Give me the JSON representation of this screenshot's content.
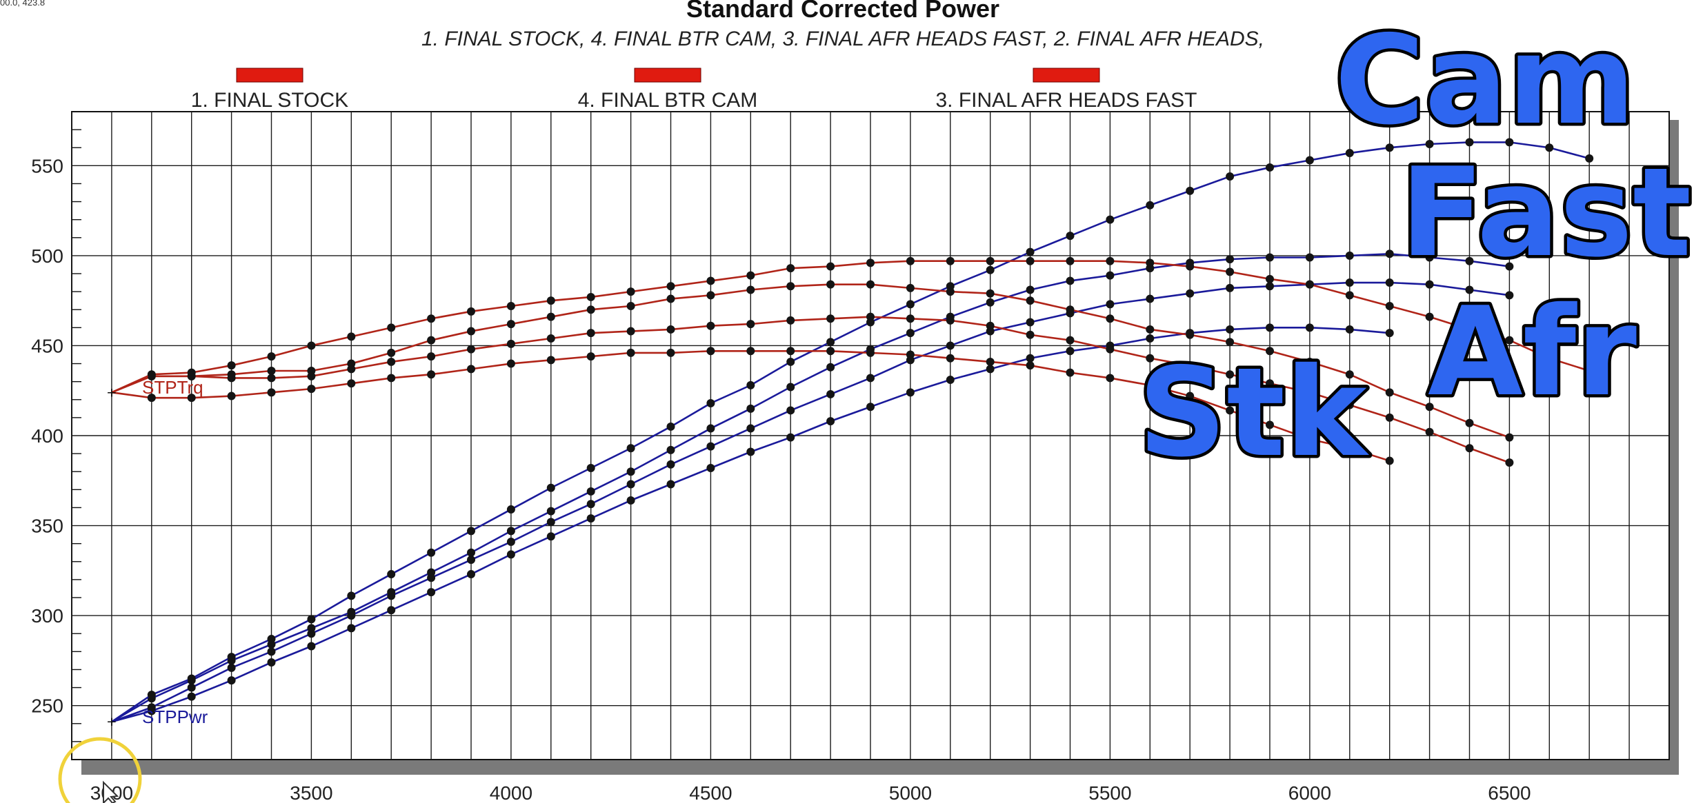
{
  "cursor_readout": "00.0, 423.8",
  "overlay_labels": [
    "Cam",
    "Fast",
    "Afr",
    "Stk"
  ],
  "colors": {
    "power": "#1a1a9a",
    "torque": "#b02418",
    "legend_swatch": "#e01b10",
    "overlay_fill": "#2e66f0",
    "cursor_ring": "#f0d23a"
  },
  "chart_data": {
    "type": "line",
    "title": "Standard Corrected Power",
    "subtitle": "1. FINAL STOCK, 4. FINAL BTR CAM, 3. FINAL AFR HEADS FAST, 2. FINAL AFR HEADS,",
    "legend_entries": [
      "1. FINAL STOCK",
      "4. FINAL BTR CAM",
      "3. FINAL AFR HEADS FAST"
    ],
    "legend_placement": "top",
    "xlabel": "",
    "ylabel": "",
    "xlim": [
      2900,
      6900
    ],
    "ylim": [
      220,
      580
    ],
    "x_ticks": [
      3000,
      3500,
      4000,
      4500,
      5000,
      5500,
      6000,
      6500
    ],
    "y_ticks": [
      250,
      300,
      350,
      400,
      450,
      500,
      550
    ],
    "grid": true,
    "axis_labels_inline": [
      "STPTrq",
      "STPPwr"
    ],
    "series": [
      {
        "kind": "power",
        "x": [
          3000,
          3100,
          3200,
          3300,
          3400,
          3500,
          3600,
          3700,
          3800,
          3900,
          4000,
          4100,
          4200,
          4300,
          4400,
          4500,
          4600,
          4700,
          4800,
          4900,
          5000,
          5100,
          5200,
          5300,
          5400,
          5500,
          5600,
          5700,
          5800,
          5900,
          6000,
          6100,
          6200
        ],
        "values": [
          241,
          247,
          255,
          264,
          274,
          283,
          293,
          303,
          313,
          323,
          334,
          344,
          354,
          364,
          373,
          382,
          391,
          399,
          408,
          416,
          424,
          431,
          437,
          443,
          447,
          450,
          454,
          457,
          459,
          460,
          460,
          459,
          457
        ]
      },
      {
        "kind": "power",
        "x": [
          3000,
          3100,
          3200,
          3300,
          3400,
          3500,
          3600,
          3700,
          3800,
          3900,
          4000,
          4100,
          4200,
          4300,
          4400,
          4500,
          4600,
          4700,
          4800,
          4900,
          5000,
          5100,
          5200,
          5300,
          5400,
          5500,
          5600,
          5700,
          5800,
          5900,
          6000,
          6100,
          6200,
          6300,
          6400,
          6500
        ],
        "values": [
          241,
          249,
          260,
          271,
          280,
          290,
          300,
          311,
          321,
          331,
          341,
          352,
          362,
          373,
          384,
          394,
          404,
          414,
          423,
          432,
          442,
          450,
          458,
          463,
          468,
          473,
          476,
          479,
          482,
          483,
          484,
          485,
          485,
          484,
          481,
          478
        ]
      },
      {
        "kind": "power",
        "x": [
          3000,
          3100,
          3200,
          3300,
          3400,
          3500,
          3600,
          3700,
          3800,
          3900,
          4000,
          4100,
          4200,
          4300,
          4400,
          4500,
          4600,
          4700,
          4800,
          4900,
          5000,
          5100,
          5200,
          5300,
          5400,
          5500,
          5600,
          5700,
          5800,
          5900,
          6000,
          6100,
          6200,
          6300,
          6400,
          6500
        ],
        "values": [
          241,
          254,
          264,
          275,
          284,
          293,
          302,
          313,
          324,
          335,
          347,
          358,
          369,
          380,
          392,
          404,
          415,
          427,
          438,
          448,
          457,
          466,
          474,
          481,
          486,
          489,
          493,
          496,
          498,
          499,
          499,
          500,
          501,
          499,
          497,
          494
        ]
      },
      {
        "kind": "power",
        "x": [
          3000,
          3100,
          3200,
          3300,
          3400,
          3500,
          3600,
          3700,
          3800,
          3900,
          4000,
          4100,
          4200,
          4300,
          4400,
          4500,
          4600,
          4700,
          4800,
          4900,
          5000,
          5100,
          5200,
          5300,
          5400,
          5500,
          5600,
          5700,
          5800,
          5900,
          6000,
          6100,
          6200,
          6300,
          6400,
          6500,
          6600,
          6700
        ],
        "values": [
          241,
          256,
          265,
          277,
          287,
          298,
          311,
          323,
          335,
          347,
          359,
          371,
          382,
          393,
          405,
          418,
          428,
          441,
          452,
          463,
          473,
          483,
          492,
          502,
          511,
          520,
          528,
          536,
          544,
          549,
          553,
          557,
          560,
          562,
          563,
          563,
          560,
          554
        ]
      },
      {
        "kind": "torque",
        "x": [
          3000,
          3100,
          3200,
          3300,
          3400,
          3500,
          3600,
          3700,
          3800,
          3900,
          4000,
          4100,
          4200,
          4300,
          4400,
          4500,
          4600,
          4700,
          4800,
          4900,
          5000,
          5100,
          5200,
          5300,
          5400,
          5500,
          5600,
          5700,
          5800,
          5900,
          6000,
          6100,
          6200
        ],
        "values": [
          424,
          421,
          421,
          422,
          424,
          426,
          429,
          432,
          434,
          437,
          440,
          442,
          444,
          446,
          446,
          447,
          447,
          447,
          447,
          446,
          445,
          443,
          441,
          439,
          435,
          432,
          428,
          422,
          414,
          406,
          398,
          393,
          386
        ]
      },
      {
        "kind": "torque",
        "x": [
          3000,
          3100,
          3200,
          3300,
          3400,
          3500,
          3600,
          3700,
          3800,
          3900,
          4000,
          4100,
          4200,
          4300,
          4400,
          4500,
          4600,
          4700,
          4800,
          4900,
          5000,
          5100,
          5200,
          5300,
          5400,
          5500,
          5600,
          5700,
          5800,
          5900,
          6000,
          6100,
          6200,
          6300,
          6400,
          6500
        ],
        "values": [
          424,
          433,
          433,
          432,
          432,
          433,
          437,
          441,
          444,
          448,
          451,
          454,
          457,
          458,
          459,
          461,
          462,
          464,
          465,
          466,
          465,
          464,
          461,
          456,
          453,
          448,
          443,
          439,
          434,
          429,
          424,
          417,
          410,
          402,
          393,
          385
        ]
      },
      {
        "kind": "torque",
        "x": [
          3000,
          3100,
          3200,
          3300,
          3400,
          3500,
          3600,
          3700,
          3800,
          3900,
          4000,
          4100,
          4200,
          4300,
          4400,
          4500,
          4600,
          4700,
          4800,
          4900,
          5000,
          5100,
          5200,
          5300,
          5400,
          5500,
          5600,
          5700,
          5800,
          5900,
          6000,
          6100,
          6200,
          6300,
          6400,
          6500
        ],
        "values": [
          424,
          433,
          433,
          434,
          436,
          436,
          440,
          446,
          453,
          458,
          462,
          466,
          470,
          472,
          476,
          478,
          481,
          483,
          484,
          484,
          482,
          480,
          479,
          475,
          470,
          465,
          459,
          456,
          452,
          447,
          441,
          434,
          424,
          416,
          407,
          399
        ]
      },
      {
        "kind": "torque",
        "x": [
          3000,
          3100,
          3200,
          3300,
          3400,
          3500,
          3600,
          3700,
          3800,
          3900,
          4000,
          4100,
          4200,
          4300,
          4400,
          4500,
          4600,
          4700,
          4800,
          4900,
          5000,
          5100,
          5200,
          5300,
          5400,
          5500,
          5600,
          5700,
          5800,
          5900,
          6000,
          6100,
          6200,
          6300,
          6400,
          6500,
          6600,
          6700
        ],
        "values": [
          424,
          434,
          435,
          439,
          444,
          450,
          455,
          460,
          465,
          469,
          472,
          475,
          477,
          480,
          483,
          486,
          489,
          493,
          494,
          496,
          497,
          497,
          497,
          497,
          497,
          497,
          496,
          494,
          491,
          487,
          484,
          478,
          472,
          466,
          459,
          453,
          443,
          436
        ]
      }
    ]
  }
}
